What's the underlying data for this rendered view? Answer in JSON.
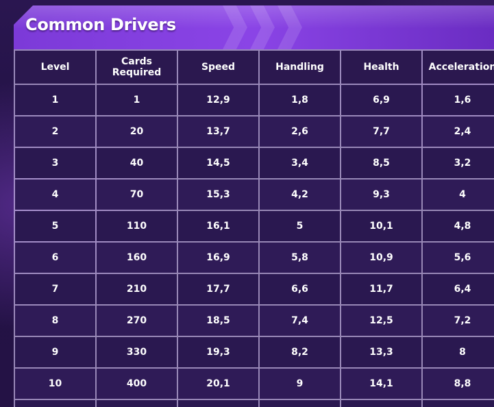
{
  "title": "Common Drivers",
  "headers": [
    "Level",
    "Cards Required",
    "Speed",
    "Handling",
    "Health",
    "Acceleration"
  ],
  "rows": [
    [
      "1",
      "1",
      "12,9",
      "1,8",
      "6,9",
      "1,6"
    ],
    [
      "2",
      "20",
      "13,7",
      "2,6",
      "7,7",
      "2,4"
    ],
    [
      "3",
      "40",
      "14,5",
      "3,4",
      "8,5",
      "3,2"
    ],
    [
      "4",
      "70",
      "15,3",
      "4,2",
      "9,3",
      "4"
    ],
    [
      "5",
      "110",
      "16,1",
      "5",
      "10,1",
      "4,8"
    ],
    [
      "6",
      "160",
      "16,9",
      "5,8",
      "10,9",
      "5,6"
    ],
    [
      "7",
      "210",
      "17,7",
      "6,6",
      "11,7",
      "6,4"
    ],
    [
      "8",
      "270",
      "18,5",
      "7,4",
      "12,5",
      "7,2"
    ],
    [
      "9",
      "330",
      "19,3",
      "8,2",
      "13,3",
      "8"
    ],
    [
      "10",
      "400",
      "20,1",
      "9",
      "14,1",
      "8,8"
    ]
  ],
  "colors": {
    "banner": "#8a44e6",
    "cell_background": "#2a1850",
    "grid_lines": "#d7c8f5",
    "text": "#ffffff"
  }
}
